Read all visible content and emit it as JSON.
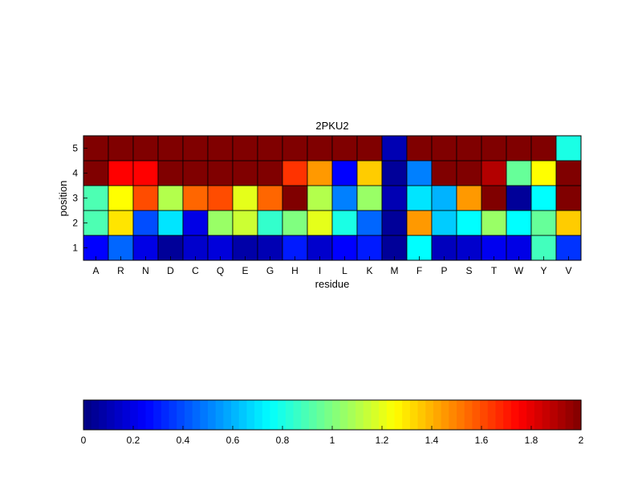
{
  "chart_data": [
    {
      "type": "heatmap",
      "title": "2PKU2",
      "xlabel": "residue",
      "ylabel": "position",
      "x_categories": [
        "A",
        "R",
        "N",
        "D",
        "C",
        "Q",
        "E",
        "G",
        "H",
        "I",
        "L",
        "K",
        "M",
        "F",
        "P",
        "S",
        "T",
        "W",
        "Y",
        "V"
      ],
      "y_categories": [
        "1",
        "2",
        "3",
        "4",
        "5"
      ],
      "values": [
        [
          0.25,
          0.45,
          0.2,
          0.05,
          0.15,
          0.18,
          0.08,
          0.1,
          0.3,
          0.15,
          0.25,
          0.3,
          0.05,
          0.75,
          0.12,
          0.15,
          0.22,
          0.2,
          0.88,
          0.35
        ],
        [
          0.9,
          1.3,
          0.4,
          0.7,
          0.2,
          1.05,
          1.15,
          0.85,
          1.0,
          1.2,
          0.8,
          0.45,
          0.05,
          1.45,
          0.65,
          0.75,
          1.05,
          0.75,
          0.95,
          1.35
        ],
        [
          0.9,
          1.25,
          1.6,
          1.1,
          1.55,
          1.6,
          1.2,
          1.55,
          2.0,
          1.1,
          0.5,
          1.05,
          0.1,
          0.7,
          0.6,
          1.45,
          2.0,
          0.05,
          0.75,
          2.0
        ],
        [
          2.0,
          1.75,
          1.75,
          2.0,
          2.0,
          2.0,
          2.0,
          2.0,
          1.65,
          1.45,
          0.25,
          1.35,
          0.05,
          0.5,
          2.0,
          2.0,
          1.9,
          0.95,
          1.25,
          2.0
        ],
        [
          2.0,
          2.0,
          2.0,
          2.0,
          2.0,
          2.0,
          2.0,
          2.0,
          2.0,
          2.0,
          2.0,
          2.0,
          0.1,
          2.0,
          2.0,
          2.0,
          2.0,
          2.0,
          2.0,
          0.8
        ]
      ],
      "colormap": "jet",
      "clim": [
        0,
        2
      ],
      "grid": false
    },
    {
      "type": "colorbar",
      "orientation": "horizontal",
      "range": [
        0,
        2
      ],
      "ticks": [
        "0",
        "0.2",
        "0.4",
        "0.6",
        "0.8",
        "1",
        "1.2",
        "1.4",
        "1.6",
        "1.8",
        "2"
      ],
      "colormap": "jet"
    }
  ]
}
